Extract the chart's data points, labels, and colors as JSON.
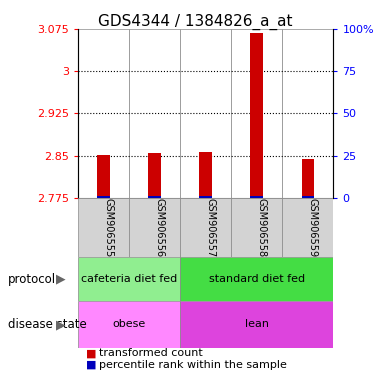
{
  "title": "GDS4344 / 1384826_a_at",
  "samples": [
    "GSM906555",
    "GSM906556",
    "GSM906557",
    "GSM906558",
    "GSM906559"
  ],
  "transformed_counts": [
    2.851,
    2.855,
    2.857,
    3.068,
    2.843
  ],
  "percentile_ranks": [
    2.778,
    2.778,
    2.778,
    2.779,
    2.778
  ],
  "ylim": [
    2.775,
    3.075
  ],
  "yticks_left": [
    2.775,
    2.85,
    2.925,
    3.0,
    3.075
  ],
  "ytick_left_labels": [
    "2.775",
    "2.85",
    "2.925",
    "3",
    "3.075"
  ],
  "ytick_right_labels": [
    "0",
    "25",
    "50",
    "75",
    "100%"
  ],
  "grid_lines": [
    3.0,
    2.925,
    2.85
  ],
  "protocol_groups": [
    {
      "label": "cafeteria diet fed",
      "start": 0,
      "end": 2,
      "color": "#90EE90"
    },
    {
      "label": "standard diet fed",
      "start": 2,
      "end": 5,
      "color": "#44DD44"
    }
  ],
  "disease_groups": [
    {
      "label": "obese",
      "start": 0,
      "end": 2,
      "color": "#FF88FF"
    },
    {
      "label": "lean",
      "start": 2,
      "end": 5,
      "color": "#DD44DD"
    }
  ],
  "bar_color_red": "#CC0000",
  "bar_color_blue": "#0000BB",
  "bar_width": 0.25,
  "protocol_label": "protocol",
  "disease_label": "disease state",
  "legend_red": "transformed count",
  "legend_blue": "percentile rank within the sample",
  "cell_bg": "#D3D3D3",
  "title_fontsize": 11
}
